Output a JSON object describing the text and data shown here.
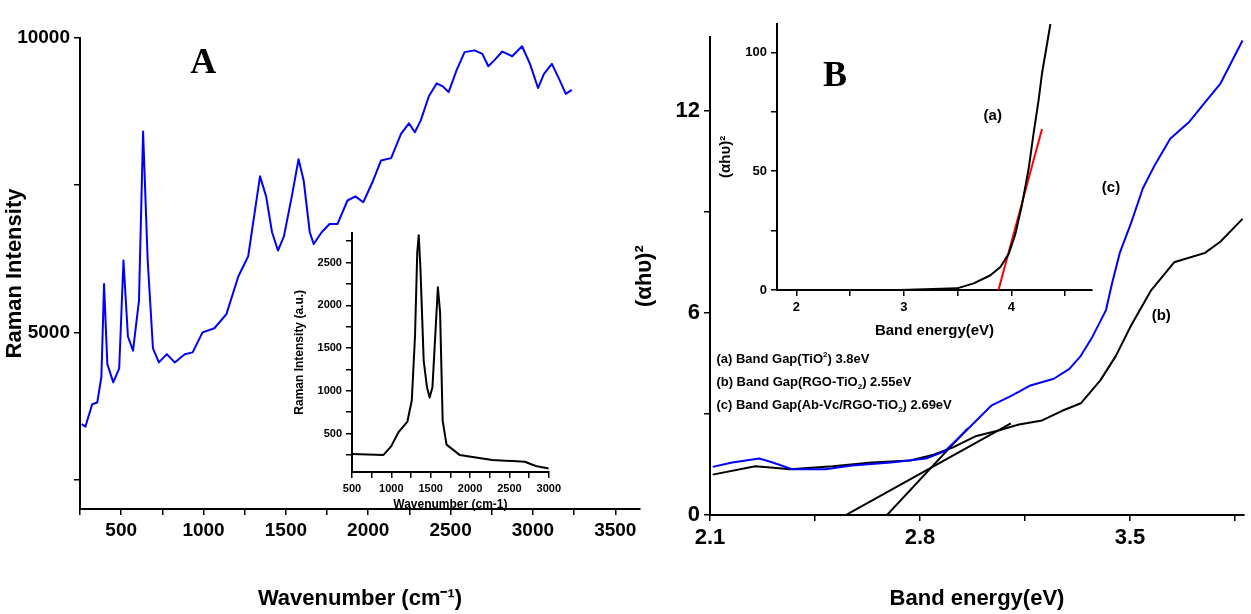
{
  "chart_data": [
    {
      "type": "line",
      "title": "A",
      "xlabel": "Wavenumber (cm⁻¹)",
      "ylabel": "Raman Intensity",
      "xlim": [
        250,
        3650
      ],
      "ylim": [
        2000,
        10000
      ],
      "marker": "none",
      "xticks": [
        {
          "value": 250,
          "label": null
        },
        500,
        {
          "value": 750,
          "label": null
        },
        1000,
        {
          "value": 1250,
          "label": null
        },
        1500,
        {
          "value": 1750,
          "label": null
        },
        2000,
        {
          "value": 2250,
          "label": null
        },
        2500,
        {
          "value": 2750,
          "label": null
        },
        3000,
        {
          "value": 3250,
          "label": null
        },
        3500
      ],
      "yticks": [
        {
          "value": 2500,
          "label": null
        },
        5000,
        {
          "value": 7500,
          "label": null
        },
        10000
      ],
      "series": [
        {
          "type": "line",
          "color": "#0000ff",
          "x": [
            260,
            283,
            324,
            355,
            380,
            396,
            416,
            452,
            488,
            514,
            541,
            572,
            608,
            633,
            661,
            693,
            729,
            777,
            825,
            886,
            934,
            994,
            1066,
            1139,
            1211,
            1271,
            1307,
            1343,
            1380,
            1416,
            1452,
            1488,
            1536,
            1577,
            1608,
            1645,
            1669,
            1717,
            1765,
            1813,
            1874,
            1922,
            1970,
            2030,
            2078,
            2139,
            2199,
            2247,
            2283,
            2319,
            2368,
            2416,
            2452,
            2488,
            2536,
            2585,
            2645,
            2693,
            2729,
            2765,
            2814,
            2874,
            2934,
            2982,
            3031,
            3067,
            3115,
            3163,
            3199,
            3236
          ],
          "values": [
            3440,
            3400,
            3780,
            3810,
            4250,
            5820,
            4460,
            4150,
            4390,
            6220,
            4930,
            4690,
            5540,
            8410,
            6220,
            4730,
            4490,
            4630,
            4490,
            4630,
            4660,
            5000,
            5070,
            5310,
            5950,
            6290,
            6970,
            7650,
            7310,
            6700,
            6390,
            6630,
            7310,
            7940,
            7580,
            6700,
            6500,
            6700,
            6840,
            6840,
            7240,
            7310,
            7210,
            7580,
            7920,
            7960,
            8370,
            8550,
            8400,
            8600,
            9010,
            9230,
            9180,
            9080,
            9450,
            9760,
            9790,
            9730,
            9520,
            9620,
            9770,
            9690,
            9860,
            9560,
            9150,
            9390,
            9560,
            9280,
            9050,
            9120
          ]
        }
      ]
    },
    {
      "type": "line",
      "xlabel": "Wavenumber (cm-1)",
      "ylabel": "Raman Intensity (a.u.)",
      "xlim": [
        500,
        3000
      ],
      "ylim": [
        50,
        2850
      ],
      "marker": "none",
      "xticks": [
        500,
        {
          "value": 750,
          "label": null
        },
        1000,
        {
          "value": 1250,
          "label": null
        },
        1500,
        {
          "value": 1750,
          "label": null
        },
        2000,
        {
          "value": 2250,
          "label": null
        },
        2500,
        {
          "value": 2750,
          "label": null
        },
        3000
      ],
      "yticks": [
        {
          "value": 250,
          "label": null
        },
        500,
        {
          "value": 750,
          "label": null
        },
        1000,
        {
          "value": 1250,
          "label": null
        },
        1500,
        {
          "value": 1750,
          "label": null
        },
        2000,
        {
          "value": 2250,
          "label": null
        },
        2500,
        {
          "value": 2750,
          "label": null
        }
      ],
      "series": [
        {
          "type": "line",
          "color": "#000000",
          "x": [
            500,
            900,
            997,
            1094,
            1204,
            1260,
            1301,
            1329,
            1348,
            1370,
            1411,
            1453,
            1486,
            1522,
            1563,
            1591,
            1619,
            1652,
            1701,
            1867,
            2281,
            2696,
            2834,
            3000
          ],
          "values": [
            260,
            250,
            350,
            520,
            640,
            890,
            1650,
            2620,
            2820,
            2420,
            1350,
            1040,
            920,
            1040,
            1730,
            2210,
            1920,
            650,
            370,
            250,
            190,
            170,
            120,
            90
          ]
        }
      ]
    },
    {
      "type": "line",
      "title": "B",
      "xlabel": "Band energy(eV)",
      "ylabel": "(αhυ)²",
      "xlim": [
        2.1,
        3.88
      ],
      "ylim": [
        0,
        14.2
      ],
      "marker": "none",
      "xticks": [
        2.1,
        {
          "value": 2.45,
          "label": null
        },
        2.8,
        {
          "value": 3.15,
          "label": null
        },
        3.5,
        {
          "value": 3.85,
          "label": null
        }
      ],
      "yticks": [
        0,
        {
          "value": 3,
          "label": null
        },
        6,
        {
          "value": 9,
          "label": null
        },
        12
      ],
      "annotations": [
        "(a) Band Gap(TiO$^{2}$) 3.8eV",
        "(b) Band Gap(RGO-TiO$_{2}$) 2.55eV",
        "(c) Band Gap(Ab-Vc/RGO-TiO$_{2}$) 2.69eV",
        "(c)",
        "(b)"
      ],
      "series": [
        {
          "type": "line",
          "color": "#0000ff",
          "x": [
            2.109,
            2.174,
            2.264,
            2.309,
            2.374,
            2.484,
            2.574,
            2.703,
            2.82,
            2.884,
            2.962,
            3.039,
            3.104,
            3.168,
            3.246,
            3.298,
            3.336,
            3.375,
            3.42,
            3.44,
            3.466,
            3.504,
            3.543,
            3.582,
            3.634,
            3.698,
            3.75,
            3.802,
            3.875
          ],
          "values": [
            1.43,
            1.56,
            1.68,
            1.56,
            1.36,
            1.36,
            1.47,
            1.56,
            1.68,
            1.9,
            2.58,
            3.26,
            3.54,
            3.85,
            4.05,
            4.34,
            4.73,
            5.3,
            6.09,
            6.88,
            7.79,
            8.69,
            9.71,
            10.39,
            11.18,
            11.69,
            12.26,
            12.83,
            14.1
          ]
        },
        {
          "type": "line",
          "color": "#000000",
          "x": [
            2.109,
            2.251,
            2.367,
            2.51,
            2.639,
            2.768,
            2.845,
            2.91,
            2.988,
            3.065,
            3.13,
            3.207,
            3.272,
            3.336,
            3.401,
            3.453,
            3.504,
            3.569,
            3.647,
            3.75,
            3.802,
            3.875
          ],
          "values": [
            1.2,
            1.45,
            1.36,
            1.45,
            1.56,
            1.62,
            1.79,
            2.01,
            2.35,
            2.52,
            2.69,
            2.81,
            3.09,
            3.32,
            4.0,
            4.73,
            5.64,
            6.66,
            7.51,
            7.79,
            8.13,
            8.8
          ]
        },
        {
          "type": "line",
          "color": "#000000",
          "x": [
            2.553,
            3.103
          ],
          "values": [
            0,
            2.72
          ]
        },
        {
          "type": "line",
          "color": "#000000",
          "x": [
            2.69,
            2.96
          ],
          "values": [
            0,
            2.58
          ]
        }
      ]
    },
    {
      "type": "line",
      "xlabel": "Band energy(eV)",
      "ylabel": "(αhυ)²",
      "xlim": [
        1.82,
        4.75
      ],
      "ylim": [
        0,
        112
      ],
      "marker": "none",
      "xticks": [
        2,
        {
          "value": 2.5,
          "label": null
        },
        3,
        {
          "value": 3.5,
          "label": null
        },
        4,
        {
          "value": 4.5,
          "label": null
        }
      ],
      "yticks": [
        0,
        {
          "value": 25,
          "label": null
        },
        50,
        {
          "value": 75,
          "label": null
        },
        100
      ],
      "annotations": [
        "(a)"
      ],
      "series": [
        {
          "type": "line",
          "color": "#000000",
          "x": [
            1.85,
            2.967,
            3.495,
            3.65,
            3.805,
            3.898,
            3.975,
            4.037,
            4.099,
            4.161,
            4.208,
            4.254,
            4.285,
            4.332,
            4.363
          ],
          "values": [
            0,
            0,
            0.7,
            2.8,
            6.2,
            9.7,
            15.2,
            23.5,
            35.9,
            51.1,
            66.3,
            80.1,
            91.1,
            103.6,
            111.9
          ]
        },
        {
          "type": "line",
          "color": "#ff0000",
          "x": [
            3.88,
            4.285
          ],
          "values": [
            0,
            67.7
          ]
        }
      ]
    }
  ]
}
